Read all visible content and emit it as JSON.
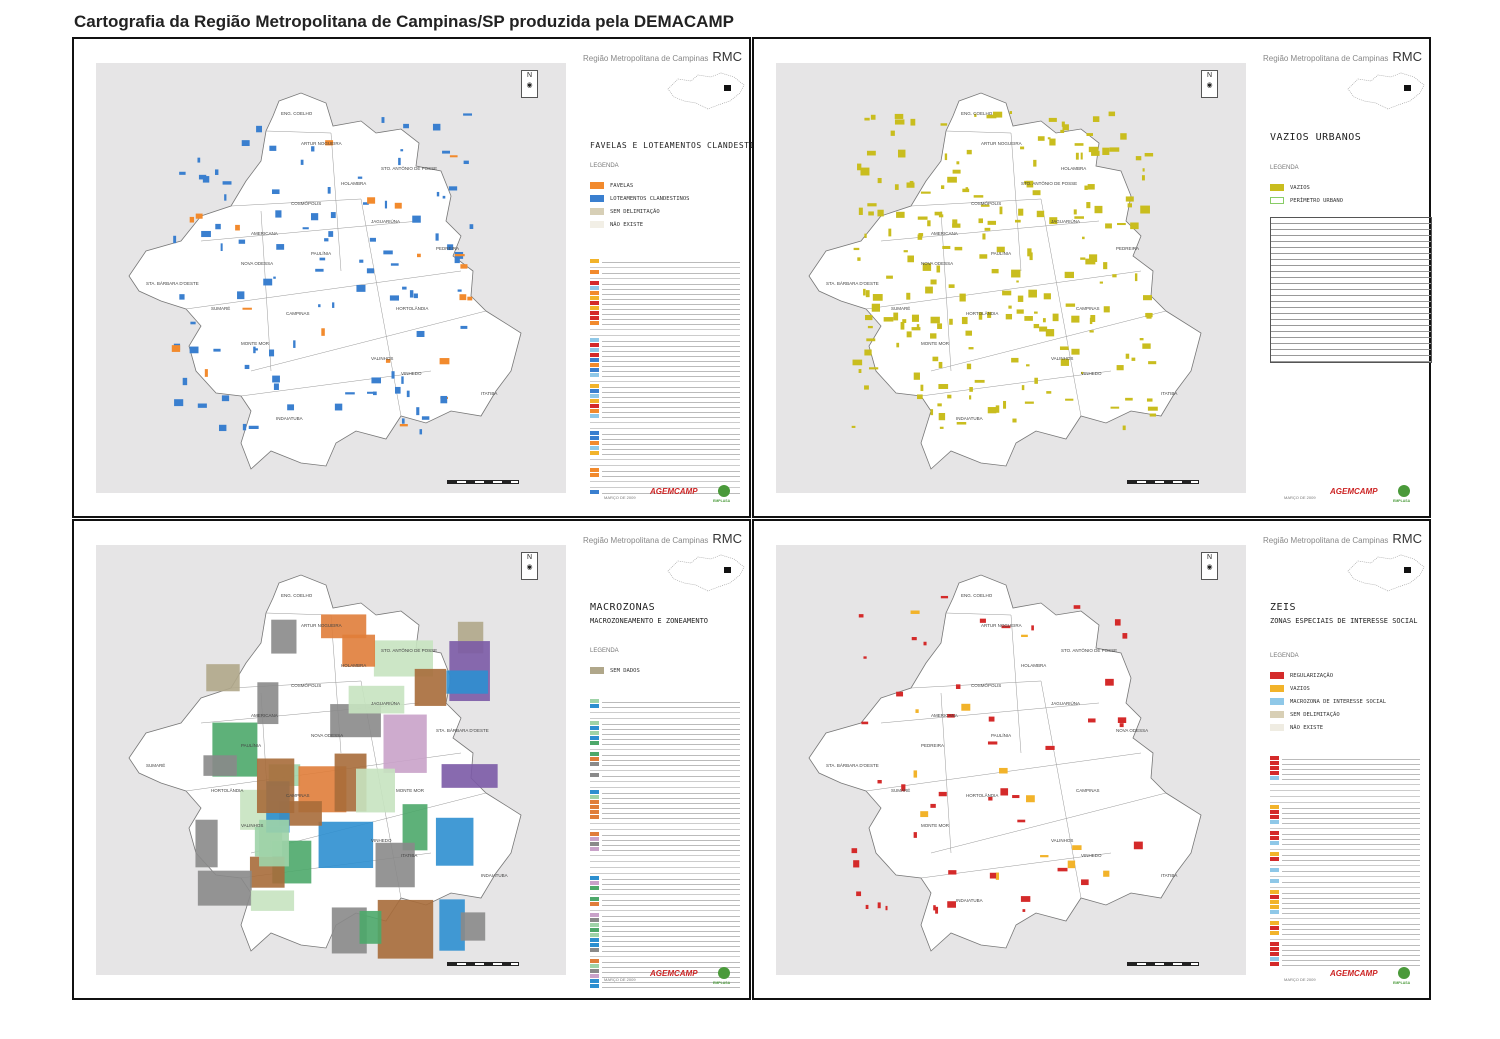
{
  "page_title": "Cartografia da Região Metropolitana de Campinas/SP produzida pela DEMACAMP",
  "common": {
    "region_label": "Região Metropolitana de Campinas",
    "region_abbr": "RMC",
    "legend_heading": "LEGENDA",
    "north": "N",
    "agency": "AGEMCAMP",
    "emplasa": "EMPLASA"
  },
  "panels": [
    {
      "title": "FAVELAS E LOTEAMENTOS CLANDESTINOS",
      "subtitle": "",
      "legend": [
        {
          "label": "FAVELAS",
          "color": "#f28a2d"
        },
        {
          "label": "LOTEAMENTOS CLANDESTINOS",
          "color": "#3a7fcf"
        },
        {
          "label": "SEM DELIMITAÇÃO",
          "color": "#d7cfb6"
        },
        {
          "label": "NÃO EXISTE",
          "color": "#f2efe6"
        }
      ],
      "date": "MARÇO DE 2009",
      "towns": [
        "ENG. COELHO",
        "ARTUR NOGUEIRA",
        "STO. ANTÔNIO DE POSSE",
        "HOLAMBRA",
        "COSMÓPOLIS",
        "JAGUARIÚNA",
        "AMERICANA",
        "PAULÍNIA",
        "NOVA ODESSA",
        "PEDREIRA",
        "STA. BÁRBARA D'OESTE",
        "SUMARÉ",
        "CAMPINAS",
        "HORTOLÂNDIA",
        "MONTE MOR",
        "VALINHOS",
        "VINHEDO",
        "ITATIBA",
        "INDAIATUBA"
      ]
    },
    {
      "title": "VAZIOS URBANOS",
      "subtitle": "",
      "legend": [
        {
          "label": "VAZIOS",
          "color": "#c9bd1e"
        },
        {
          "label": "PERÍMETRO URBANO",
          "color": "#ffffff"
        }
      ],
      "date": "MARÇO DE 2009",
      "towns": [
        "ENG. COELHO",
        "ARTUR NOGUEIRA",
        "HOLAMBRA",
        "STO. ANTÔNIO DE POSSE",
        "COSMÓPOLIS",
        "JAGUARIÚNA",
        "AMERICANA",
        "PAULÍNIA",
        "NOVA ODESSA",
        "PEDREIRA",
        "STA. BÁRBARA D'OESTE",
        "SUMARÉ",
        "HORTOLÂNDIA",
        "CAMPINAS",
        "MONTE MOR",
        "VALINHOS",
        "VINHEDO",
        "ITATIBA",
        "INDAIATUBA"
      ]
    },
    {
      "title": "MACROZONAS",
      "subtitle": "MACROZONEAMENTO E ZONEAMENTO",
      "legend": [
        {
          "label": "SEM DADOS",
          "color": "#b0a78a"
        }
      ],
      "date": "MARÇO DE 2009",
      "towns": [
        "ENG. COELHO",
        "ARTUR NOGUEIRA",
        "STO. ANTÔNIO DE POSSE",
        "HOLAMBRA",
        "COSMÓPOLIS",
        "JAGUARIÚNA",
        "AMERICANA",
        "NOVA ODESSA",
        "PAULÍNIA",
        "STA. BÁRBARA D'OESTE",
        "SUMARÉ",
        "HORTOLÂNDIA",
        "CAMPINAS",
        "MONTE MOR",
        "VALINHOS",
        "VINHEDO",
        "ITATIBA",
        "INDAIATUBA"
      ]
    },
    {
      "title": "ZEIS",
      "subtitle": "ZONAS ESPECIAIS DE INTERESSE SOCIAL",
      "legend": [
        {
          "label": "REGULARIZAÇÃO",
          "color": "#d42a2a"
        },
        {
          "label": "VAZIOS",
          "color": "#f2b32a"
        },
        {
          "label": "MACROZONA DE INTERESSE SOCIAL",
          "color": "#8fc8e8"
        },
        {
          "label": "SEM DELIMITAÇÃO",
          "color": "#d8cfb5"
        },
        {
          "label": "NÃO EXISTE",
          "color": "#efece2"
        }
      ],
      "date": "MARÇO DE 2009",
      "towns": [
        "ENG. COELHO",
        "ARTUR NOGUEIRA",
        "STO. ANTÔNIO DE POSSE",
        "HOLAMBRA",
        "COSMÓPOLIS",
        "JAGUARIÚNA",
        "AMERICANA",
        "PAULÍNIA",
        "PEDREIRA",
        "NOVA ODESSA",
        "STA. BÁRBARA D'OESTE",
        "SUMARÉ",
        "HORTOLÂNDIA",
        "CAMPINAS",
        "MONTE MOR",
        "VALINHOS",
        "VINHEDO",
        "ITATIBA",
        "INDAIATUBA"
      ]
    }
  ]
}
